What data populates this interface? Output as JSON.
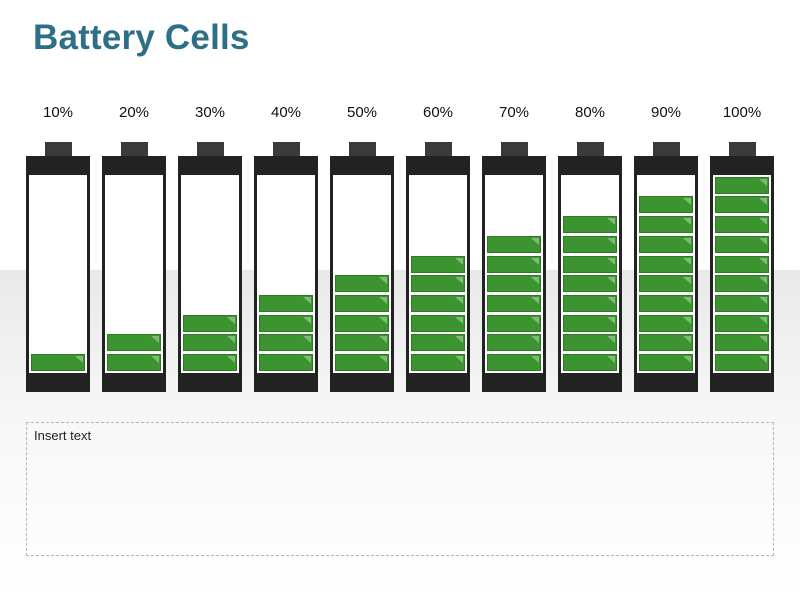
{
  "title": "Battery Cells",
  "colors": {
    "title": "#2d6f87",
    "fill": "#3c9430",
    "body": "#222222"
  },
  "segments_total": 10,
  "batteries": [
    {
      "label": "10%",
      "level": 1
    },
    {
      "label": "20%",
      "level": 2
    },
    {
      "label": "30%",
      "level": 3
    },
    {
      "label": "40%",
      "level": 4
    },
    {
      "label": "50%",
      "level": 5
    },
    {
      "label": "60%",
      "level": 6
    },
    {
      "label": "70%",
      "level": 7
    },
    {
      "label": "80%",
      "level": 8
    },
    {
      "label": "90%",
      "level": 9
    },
    {
      "label": "100%",
      "level": 10
    }
  ],
  "textbox": {
    "placeholder": "Insert text"
  }
}
